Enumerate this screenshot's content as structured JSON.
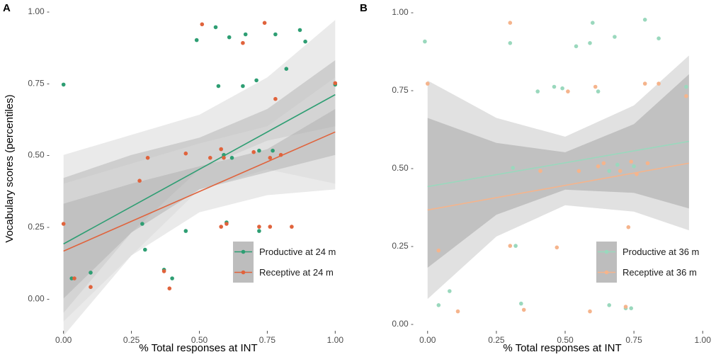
{
  "figure": {
    "legend_placement": "bottom-right of each panel"
  },
  "chart_data": [
    {
      "panel_label": "A",
      "type": "scatter",
      "xlabel": "% Total responses at INT",
      "ylabel": "Vocabulary scores (percentiles)",
      "xlim": [
        -0.02,
        1.02
      ],
      "ylim": [
        -0.12,
        1.02
      ],
      "xticks": [
        0,
        0.25,
        0.5,
        0.75,
        1
      ],
      "xtick_labels": [
        "0.00",
        "0.25",
        "0.50",
        "0.75",
        "1.00"
      ],
      "yticks": [
        0,
        0.25,
        0.5,
        0.75,
        1
      ],
      "ytick_labels": [
        "0.00 -",
        "0.25 -",
        "0.50 -",
        "0.75 -",
        "1.00 -"
      ],
      "grid": false,
      "series": [
        {
          "name": "Productive at 24 m",
          "color": "#2e9e73",
          "fit": {
            "x": [
              0,
              1
            ],
            "y": [
              0.19,
              0.71
            ]
          },
          "band_inner": {
            "x": [
              0,
              0.25,
              0.5,
              0.75,
              1
            ],
            "lower": [
              -0.05,
              0.23,
              0.45,
              0.55,
              0.6
            ],
            "upper": [
              0.42,
              0.5,
              0.56,
              0.66,
              0.83
            ]
          },
          "band_outer": {
            "x": [
              0,
              0.25,
              0.5,
              0.75,
              1
            ],
            "lower": [
              -0.13,
              0.15,
              0.38,
              0.45,
              0.4
            ],
            "upper": [
              0.5,
              0.57,
              0.64,
              0.77,
              0.97
            ]
          },
          "points": [
            [
              0.0,
              0.745
            ],
            [
              0.03,
              0.07
            ],
            [
              0.1,
              0.09
            ],
            [
              0.29,
              0.26
            ],
            [
              0.3,
              0.17
            ],
            [
              0.37,
              0.1
            ],
            [
              0.4,
              0.07
            ],
            [
              0.45,
              0.235
            ],
            [
              0.49,
              0.9
            ],
            [
              0.56,
              0.945
            ],
            [
              0.57,
              0.74
            ],
            [
              0.59,
              0.5
            ],
            [
              0.6,
              0.265
            ],
            [
              0.61,
              0.91
            ],
            [
              0.62,
              0.49
            ],
            [
              0.66,
              0.74
            ],
            [
              0.67,
              0.92
            ],
            [
              0.71,
              0.76
            ],
            [
              0.72,
              0.515
            ],
            [
              0.72,
              0.235
            ],
            [
              0.77,
              0.515
            ],
            [
              0.78,
              0.92
            ],
            [
              0.82,
              0.8
            ],
            [
              0.87,
              0.935
            ],
            [
              0.89,
              0.895
            ],
            [
              1.0,
              0.745
            ]
          ]
        },
        {
          "name": "Receptive at 24 m",
          "color": "#e0633c",
          "fit": {
            "x": [
              0,
              1
            ],
            "y": [
              0.165,
              0.58
            ]
          },
          "band_inner": {
            "x": [
              0,
              0.25,
              0.5,
              0.75,
              1
            ],
            "lower": [
              0.0,
              0.23,
              0.38,
              0.44,
              0.5
            ],
            "upper": [
              0.33,
              0.4,
              0.46,
              0.52,
              0.66
            ]
          },
          "band_outer": {
            "x": [
              0,
              0.25,
              0.5,
              0.75,
              1
            ],
            "lower": [
              -0.08,
              0.15,
              0.3,
              0.36,
              0.38
            ],
            "upper": [
              0.4,
              0.47,
              0.54,
              0.6,
              0.77
            ]
          },
          "points": [
            [
              0.0,
              0.26
            ],
            [
              0.04,
              0.07
            ],
            [
              0.1,
              0.04
            ],
            [
              0.28,
              0.41
            ],
            [
              0.31,
              0.49
            ],
            [
              0.37,
              0.095
            ],
            [
              0.39,
              0.035
            ],
            [
              0.45,
              0.505
            ],
            [
              0.51,
              0.955
            ],
            [
              0.54,
              0.49
            ],
            [
              0.58,
              0.25
            ],
            [
              0.58,
              0.52
            ],
            [
              0.59,
              0.49
            ],
            [
              0.6,
              0.26
            ],
            [
              0.66,
              0.89
            ],
            [
              0.7,
              0.51
            ],
            [
              0.72,
              0.25
            ],
            [
              0.74,
              0.96
            ],
            [
              0.76,
              0.49
            ],
            [
              0.76,
              0.25
            ],
            [
              0.78,
              0.695
            ],
            [
              0.8,
              0.5
            ],
            [
              0.84,
              0.25
            ],
            [
              1.0,
              0.75
            ]
          ]
        }
      ]
    },
    {
      "panel_label": "B",
      "type": "scatter",
      "xlabel": "% Total responses at INT",
      "ylabel": "",
      "xlim": [
        -0.02,
        1.02
      ],
      "ylim": [
        -0.02,
        1.02
      ],
      "xticks": [
        0,
        0.25,
        0.5,
        0.75,
        1
      ],
      "xtick_labels": [
        "0.00",
        "0.25",
        "0.50",
        "0.75",
        "1.00"
      ],
      "yticks": [
        0,
        0.25,
        0.5,
        0.75,
        1
      ],
      "ytick_labels": [
        "0.00 -",
        "0.25 -",
        "0.50 -",
        "0.75 -",
        "1.00 -"
      ],
      "grid": false,
      "series": [
        {
          "name": "Productive at 36 m",
          "color": "#9ad8bd",
          "fit": {
            "x": [
              0,
              0.95
            ],
            "y": [
              0.44,
              0.585
            ]
          },
          "band_inner": {
            "x": [
              0,
              0.25,
              0.5,
              0.75,
              0.95
            ],
            "lower": [
              0.18,
              0.35,
              0.43,
              0.42,
              0.37
            ],
            "upper": [
              0.66,
              0.58,
              0.55,
              0.64,
              0.8
            ]
          },
          "band_outer": {
            "x": [
              0,
              0.25,
              0.5,
              0.75,
              0.95
            ],
            "lower": [
              0.08,
              0.28,
              0.38,
              0.36,
              0.3
            ],
            "upper": [
              0.78,
              0.66,
              0.6,
              0.7,
              0.86
            ]
          },
          "points": [
            [
              -0.01,
              0.905
            ],
            [
              0.04,
              0.06
            ],
            [
              0.08,
              0.105
            ],
            [
              0.3,
              0.9
            ],
            [
              0.31,
              0.5
            ],
            [
              0.32,
              0.25
            ],
            [
              0.34,
              0.065
            ],
            [
              0.4,
              0.745
            ],
            [
              0.46,
              0.76
            ],
            [
              0.49,
              0.755
            ],
            [
              0.54,
              0.89
            ],
            [
              0.59,
              0.9
            ],
            [
              0.6,
              0.965
            ],
            [
              0.62,
              0.745
            ],
            [
              0.66,
              0.49
            ],
            [
              0.66,
              0.06
            ],
            [
              0.68,
              0.92
            ],
            [
              0.69,
              0.51
            ],
            [
              0.72,
              0.05
            ],
            [
              0.74,
              0.05
            ],
            [
              0.75,
              0.505
            ],
            [
              0.79,
              0.975
            ],
            [
              0.84,
              0.915
            ],
            [
              0.94,
              0.76
            ]
          ]
        },
        {
          "name": "Receptive at 36 m",
          "color": "#f5b48c",
          "fit": {
            "x": [
              0,
              0.95
            ],
            "y": [
              0.365,
              0.515
            ]
          },
          "band_inner": {
            "x": [
              0,
              0.25,
              0.5,
              0.75,
              0.95
            ],
            "lower": [
              0.18,
              0.35,
              0.43,
              0.42,
              0.37
            ],
            "upper": [
              0.66,
              0.58,
              0.55,
              0.64,
              0.8
            ]
          },
          "band_outer": {
            "x": [
              0,
              0.25,
              0.5,
              0.75,
              0.95
            ],
            "lower": [
              0.08,
              0.28,
              0.38,
              0.36,
              0.3
            ],
            "upper": [
              0.78,
              0.66,
              0.6,
              0.7,
              0.86
            ]
          },
          "points": [
            [
              0.0,
              0.77
            ],
            [
              0.04,
              0.235
            ],
            [
              0.11,
              0.04
            ],
            [
              0.3,
              0.25
            ],
            [
              0.3,
              0.965
            ],
            [
              0.35,
              0.045
            ],
            [
              0.41,
              0.49
            ],
            [
              0.47,
              0.245
            ],
            [
              0.51,
              0.745
            ],
            [
              0.55,
              0.49
            ],
            [
              0.59,
              0.04
            ],
            [
              0.61,
              0.76
            ],
            [
              0.62,
              0.505
            ],
            [
              0.64,
              0.515
            ],
            [
              0.7,
              0.49
            ],
            [
              0.72,
              0.055
            ],
            [
              0.73,
              0.31
            ],
            [
              0.74,
              0.52
            ],
            [
              0.76,
              0.48
            ],
            [
              0.79,
              0.77
            ],
            [
              0.8,
              0.515
            ],
            [
              0.84,
              0.77
            ],
            [
              0.94,
              0.73
            ]
          ]
        }
      ]
    }
  ]
}
